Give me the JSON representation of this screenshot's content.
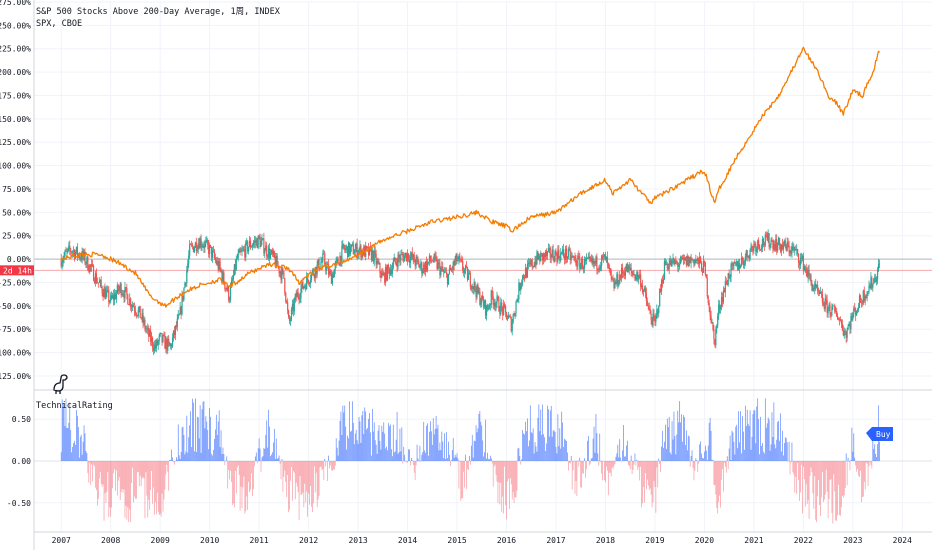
{
  "header": {
    "title_line1": "S&P 500 Stocks Above 200-Day Average, 1周, INDEX",
    "title_line2": "SPX, CBOE"
  },
  "price_badge": {
    "text": "2d 14h",
    "color": "#f23645"
  },
  "indicator": {
    "name": "TechnicalRating",
    "signal_label": "Buy",
    "signal_color": "#2962ff"
  },
  "icons": {
    "logo": "dinosaur-logo-icon"
  },
  "colors": {
    "spx_line": "#f57c00",
    "candle_up": "#26a69a",
    "candle_down": "#ef5350",
    "bar_buy": "#2962ff",
    "bar_sell": "#f23645"
  },
  "chart_data": [
    {
      "type": "line",
      "title": "S&P 500 Stocks Above 200-Day Average, 1周, INDEX",
      "ylim": [
        -140,
        275
      ],
      "y_ticks": [
        "275.00%",
        "250.00%",
        "225.00%",
        "200.00%",
        "175.00%",
        "150.00%",
        "125.00%",
        "100.00%",
        "75.00%",
        "50.00%",
        "25.00%",
        "0.00%",
        "-25.00%",
        "-50.00%",
        "-75.00%",
        "-100.00%",
        "-125.00%"
      ],
      "y_tick_values": [
        275,
        250,
        225,
        200,
        175,
        150,
        125,
        100,
        75,
        50,
        25,
        0,
        -25,
        -50,
        -75,
        -100,
        -125
      ],
      "xlim": [
        2006.45,
        2024.6
      ],
      "series": [
        {
          "name": "S&P 500 Stocks Above 200-Day Average",
          "style": "candles",
          "x": [
            2007.0,
            2007.2,
            2007.45,
            2007.6,
            2007.8,
            2008.0,
            2008.2,
            2008.4,
            2008.6,
            2008.75,
            2008.9,
            2009.0,
            2009.2,
            2009.4,
            2009.6,
            2009.8,
            2010.0,
            2010.2,
            2010.4,
            2010.55,
            2010.8,
            2011.0,
            2011.3,
            2011.5,
            2011.6,
            2011.75,
            2012.0,
            2012.3,
            2012.45,
            2012.7,
            2013.0,
            2013.3,
            2013.5,
            2013.8,
            2014.0,
            2014.3,
            2014.5,
            2014.8,
            2015.0,
            2015.3,
            2015.6,
            2015.7,
            2016.0,
            2016.1,
            2016.3,
            2016.6,
            2016.9,
            2017.2,
            2017.5,
            2017.8,
            2018.0,
            2018.15,
            2018.4,
            2018.7,
            2018.9,
            2019.0,
            2019.2,
            2019.5,
            2019.8,
            2020.0,
            2020.2,
            2020.3,
            2020.5,
            2020.8,
            2021.0,
            2021.3,
            2021.5,
            2021.8,
            2022.0,
            2022.2,
            2022.45,
            2022.7,
            2022.85,
            2023.0,
            2023.2,
            2023.45,
            2023.55
          ],
          "values": [
            0,
            10,
            2,
            -10,
            -30,
            -45,
            -30,
            -45,
            -60,
            -80,
            -95,
            -85,
            -95,
            -60,
            10,
            20,
            10,
            -10,
            -40,
            0,
            15,
            20,
            0,
            -20,
            -70,
            -40,
            -20,
            0,
            -20,
            10,
            10,
            5,
            -20,
            0,
            5,
            -10,
            0,
            -20,
            0,
            -25,
            -55,
            -40,
            -60,
            -70,
            -20,
            0,
            5,
            5,
            -5,
            -5,
            0,
            -30,
            -10,
            -20,
            -60,
            -70,
            -5,
            -5,
            0,
            -10,
            -90,
            -50,
            -15,
            0,
            15,
            20,
            15,
            10,
            -5,
            -30,
            -50,
            -60,
            -80,
            -60,
            -40,
            -20,
            -5
          ]
        },
        {
          "name": "SPX, CBOE",
          "style": "line",
          "x": [
            2007.0,
            2007.4,
            2007.8,
            2008.2,
            2008.5,
            2008.8,
            2009.1,
            2009.5,
            2009.8,
            2010.2,
            2010.4,
            2010.8,
            2011.2,
            2011.6,
            2011.8,
            2012.2,
            2012.6,
            2013.0,
            2013.5,
            2014.0,
            2014.5,
            2015.0,
            2015.4,
            2015.7,
            2016.0,
            2016.1,
            2016.5,
            2017.0,
            2017.5,
            2018.0,
            2018.15,
            2018.5,
            2018.9,
            2019.0,
            2019.5,
            2020.0,
            2020.2,
            2020.3,
            2020.6,
            2020.9,
            2021.2,
            2021.5,
            2021.8,
            2022.0,
            2022.3,
            2022.5,
            2022.7,
            2022.8,
            2023.0,
            2023.2,
            2023.4,
            2023.55
          ],
          "values": [
            0,
            5,
            5,
            -5,
            -15,
            -40,
            -50,
            -35,
            -28,
            -22,
            -30,
            -15,
            -5,
            -10,
            -25,
            -10,
            -5,
            5,
            20,
            30,
            40,
            45,
            50,
            40,
            35,
            30,
            45,
            50,
            70,
            85,
            70,
            85,
            60,
            65,
            80,
            95,
            60,
            75,
            105,
            130,
            155,
            175,
            205,
            225,
            200,
            175,
            165,
            155,
            180,
            175,
            200,
            225
          ]
        }
      ]
    },
    {
      "type": "bar",
      "title": "TechnicalRating",
      "ylim": [
        -0.85,
        0.85
      ],
      "y_ticks": [
        "0.50",
        "0.00",
        "-0.50"
      ],
      "y_tick_values": [
        0.5,
        0.0,
        -0.5
      ],
      "x_ticks": [
        "2007",
        "2008",
        "2009",
        "2010",
        "2011",
        "2012",
        "2013",
        "2014",
        "2015",
        "2016",
        "2017",
        "2018",
        "2019",
        "2020",
        "2021",
        "2022",
        "2023",
        "2024"
      ],
      "x_tick_values": [
        2007,
        2008,
        2009,
        2010,
        2011,
        2012,
        2013,
        2014,
        2015,
        2016,
        2017,
        2018,
        2019,
        2020,
        2021,
        2022,
        2023,
        2024
      ],
      "series": [
        {
          "name": "TechnicalRating",
          "style": "histogram",
          "x": [
            2007.0,
            2007.4,
            2007.8,
            2008.2,
            2008.6,
            2009.0,
            2009.4,
            2009.6,
            2009.9,
            2010.2,
            2010.4,
            2010.8,
            2011.2,
            2011.6,
            2012.0,
            2012.3,
            2012.7,
            2013.0,
            2013.4,
            2013.8,
            2014.1,
            2014.4,
            2014.8,
            2015.1,
            2015.5,
            2015.8,
            2016.1,
            2016.4,
            2016.7,
            2017.1,
            2017.4,
            2017.8,
            2018.1,
            2018.4,
            2018.7,
            2019.0,
            2019.2,
            2019.5,
            2019.8,
            2020.1,
            2020.3,
            2020.6,
            2021.0,
            2021.3,
            2021.6,
            2021.9,
            2022.1,
            2022.4,
            2022.7,
            2023.0,
            2023.2,
            2023.55
          ],
          "values": [
            0.6,
            0.3,
            -0.5,
            -0.55,
            -0.45,
            -0.5,
            0.3,
            0.55,
            0.5,
            0.4,
            -0.3,
            -0.45,
            0.5,
            -0.45,
            -0.5,
            -0.25,
            0.45,
            0.5,
            0.4,
            0.35,
            -0.2,
            0.45,
            0.3,
            -0.3,
            0.5,
            -0.4,
            -0.5,
            0.45,
            0.55,
            0.45,
            -0.3,
            0.35,
            -0.4,
            0.3,
            -0.3,
            -0.5,
            0.45,
            0.5,
            -0.2,
            0.35,
            -0.55,
            0.45,
            0.5,
            0.55,
            0.35,
            -0.3,
            -0.5,
            -0.55,
            -0.55,
            0.2,
            -0.4,
            0.5
          ]
        }
      ]
    }
  ]
}
